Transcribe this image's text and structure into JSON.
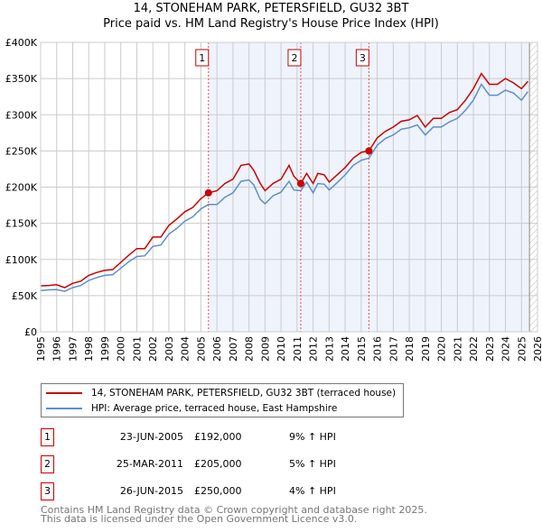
{
  "chart_data": {
    "type": "line",
    "title": "14, STONEHAM PARK, PETERSFIELD, GU32 3BT",
    "subtitle": "Price paid vs. HM Land Registry's House Price Index (HPI)",
    "xlim": [
      1995,
      2026
    ],
    "ylim": [
      0,
      400000
    ],
    "x_ticks": [
      "1995",
      "1996",
      "1997",
      "1998",
      "1999",
      "2000",
      "2001",
      "2002",
      "2003",
      "2004",
      "2005",
      "2006",
      "2007",
      "2008",
      "2009",
      "2010",
      "2011",
      "2012",
      "2013",
      "2014",
      "2015",
      "2016",
      "2017",
      "2018",
      "2019",
      "2020",
      "2021",
      "2022",
      "2023",
      "2024",
      "2025",
      "2026"
    ],
    "y_ticks": [
      {
        "v": 0,
        "l": "£0"
      },
      {
        "v": 50000,
        "l": "£50K"
      },
      {
        "v": 100000,
        "l": "£100K"
      },
      {
        "v": 150000,
        "l": "£150K"
      },
      {
        "v": 200000,
        "l": "£200K"
      },
      {
        "v": 250000,
        "l": "£250K"
      },
      {
        "v": 300000,
        "l": "£300K"
      },
      {
        "v": 350000,
        "l": "£350K"
      },
      {
        "v": 400000,
        "l": "£400K"
      }
    ],
    "grid": true,
    "series": [
      {
        "name": "14, STONEHAM PARK, PETERSFIELD, GU32 3BT (terraced house)",
        "color": "#cc0000",
        "x": [
          1995,
          1995.5,
          1996,
          1996.5,
          1997,
          1997.5,
          1998,
          1998.5,
          1999,
          1999.5,
          2000,
          2000.5,
          2001,
          2001.5,
          2002,
          2002.5,
          2003,
          2003.5,
          2004,
          2004.5,
          2005,
          2005.47,
          2006,
          2006.5,
          2007,
          2007.5,
          2008,
          2008.3,
          2008.7,
          2009,
          2009.5,
          2010,
          2010.5,
          2010.8,
          2011.23,
          2011.6,
          2012,
          2012.3,
          2012.7,
          2013,
          2013.5,
          2014,
          2014.5,
          2015,
          2015.48,
          2016,
          2016.5,
          2017,
          2017.5,
          2018,
          2018.5,
          2019,
          2019.5,
          2020,
          2020.5,
          2021,
          2021.5,
          2022,
          2022.5,
          2023,
          2023.5,
          2024,
          2024.5,
          2025,
          2025.4
        ],
        "y": [
          63500,
          64000,
          65000,
          61000,
          67000,
          70000,
          78000,
          82000,
          85000,
          86000,
          96000,
          106000,
          115000,
          115000,
          131000,
          131000,
          147000,
          156000,
          166000,
          172000,
          184000,
          192000,
          195000,
          205000,
          211000,
          230000,
          232000,
          223000,
          205000,
          195000,
          205000,
          211000,
          230000,
          215000,
          205000,
          219000,
          205000,
          219000,
          217000,
          207000,
          217000,
          227000,
          240000,
          248000,
          250000,
          268000,
          277000,
          283000,
          291000,
          293000,
          299000,
          283000,
          295000,
          295000,
          303000,
          307000,
          320000,
          336000,
          357000,
          342000,
          342000,
          350000,
          344000,
          336000,
          346000
        ]
      },
      {
        "name": "HPI: Average price, terraced house, East Hampshire",
        "color": "#5b8fd0",
        "x": [
          1995,
          1995.5,
          1996,
          1996.5,
          1997,
          1997.5,
          1998,
          1998.5,
          1999,
          1999.5,
          2000,
          2000.5,
          2001,
          2001.5,
          2002,
          2002.5,
          2003,
          2003.5,
          2004,
          2004.5,
          2005,
          2005.47,
          2006,
          2006.5,
          2007,
          2007.5,
          2008,
          2008.3,
          2008.7,
          2009,
          2009.5,
          2010,
          2010.5,
          2010.8,
          2011.23,
          2011.6,
          2012,
          2012.3,
          2012.7,
          2013,
          2013.5,
          2014,
          2014.5,
          2015,
          2015.48,
          2016,
          2016.5,
          2017,
          2017.5,
          2018,
          2018.5,
          2019,
          2019.5,
          2020,
          2020.5,
          2021,
          2021.5,
          2022,
          2022.5,
          2023,
          2023.5,
          2024,
          2024.5,
          2025,
          2025.4
        ],
        "y": [
          57000,
          58000,
          58500,
          56000,
          61000,
          64000,
          71000,
          75000,
          78000,
          79000,
          88000,
          97000,
          104000,
          105000,
          118000,
          120000,
          135000,
          143000,
          153000,
          159000,
          170000,
          176000,
          176000,
          186000,
          192000,
          208000,
          210000,
          203000,
          183000,
          177000,
          188000,
          193000,
          208000,
          196000,
          195000,
          207000,
          192000,
          205000,
          204000,
          196000,
          206000,
          217000,
          230000,
          237000,
          240000,
          258000,
          267000,
          272000,
          280000,
          282000,
          286000,
          272000,
          283000,
          283000,
          290000,
          295000,
          306000,
          320000,
          342000,
          327000,
          327000,
          334000,
          330000,
          320000,
          332000
        ]
      }
    ],
    "markers": [
      {
        "label": "1",
        "x": 2005.47,
        "y": 192000
      },
      {
        "label": "2",
        "x": 2011.23,
        "y": 205000
      },
      {
        "label": "3",
        "x": 2015.48,
        "y": 250000
      }
    ],
    "legend_placement": "bottom"
  },
  "transactions": [
    {
      "num": "1",
      "date": "23-JUN-2005",
      "price": "£192,000",
      "hpi": "9% ↑ HPI"
    },
    {
      "num": "2",
      "date": "25-MAR-2011",
      "price": "£205,000",
      "hpi": "5% ↑ HPI"
    },
    {
      "num": "3",
      "date": "26-JUN-2015",
      "price": "£250,000",
      "hpi": "4% ↑ HPI"
    }
  ],
  "footer": [
    "Contains HM Land Registry data © Crown copyright and database right 2025.",
    "This data is licensed under the Open Government Licence v3.0."
  ]
}
